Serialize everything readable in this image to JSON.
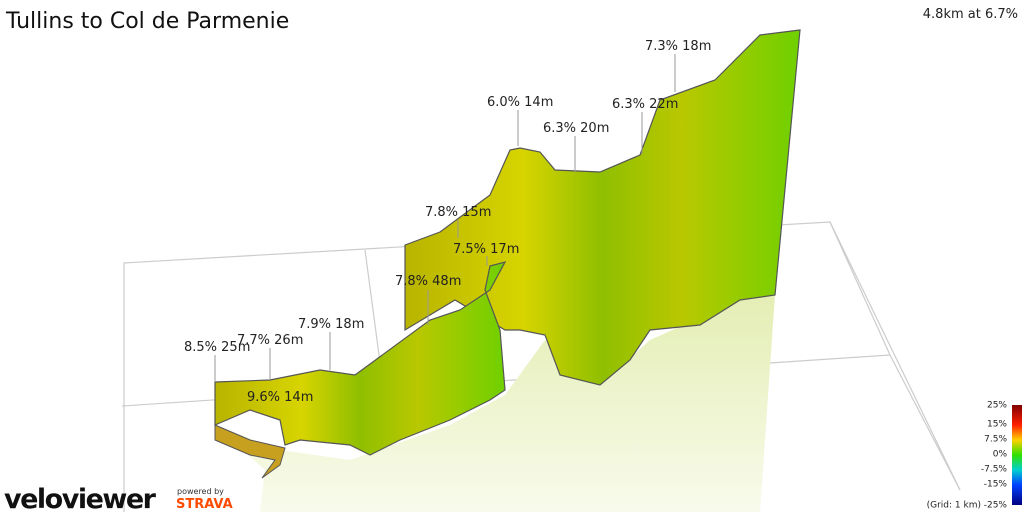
{
  "header": {
    "title": "Tullins to Col de Parmenie",
    "summary": "4.8km at 6.7%"
  },
  "annotations": [
    "7.3% 18m",
    "6.0% 14m",
    "6.3% 20m",
    "6.3% 22m",
    "7.8% 15m",
    "7.5% 17m",
    "7.8% 48m",
    "7.9% 18m",
    "8.5% 25m",
    "7.7% 26m",
    "9.6% 14m"
  ],
  "legend": {
    "labels": [
      "25%",
      "15%",
      "7.5%",
      "0%",
      "-7.5%",
      "-15%",
      "-25%"
    ],
    "grid_note": "(Grid: 1 km)"
  },
  "branding": {
    "logo": "veloviewer",
    "powered_by": "powered by",
    "partner": "STRAVA"
  }
}
